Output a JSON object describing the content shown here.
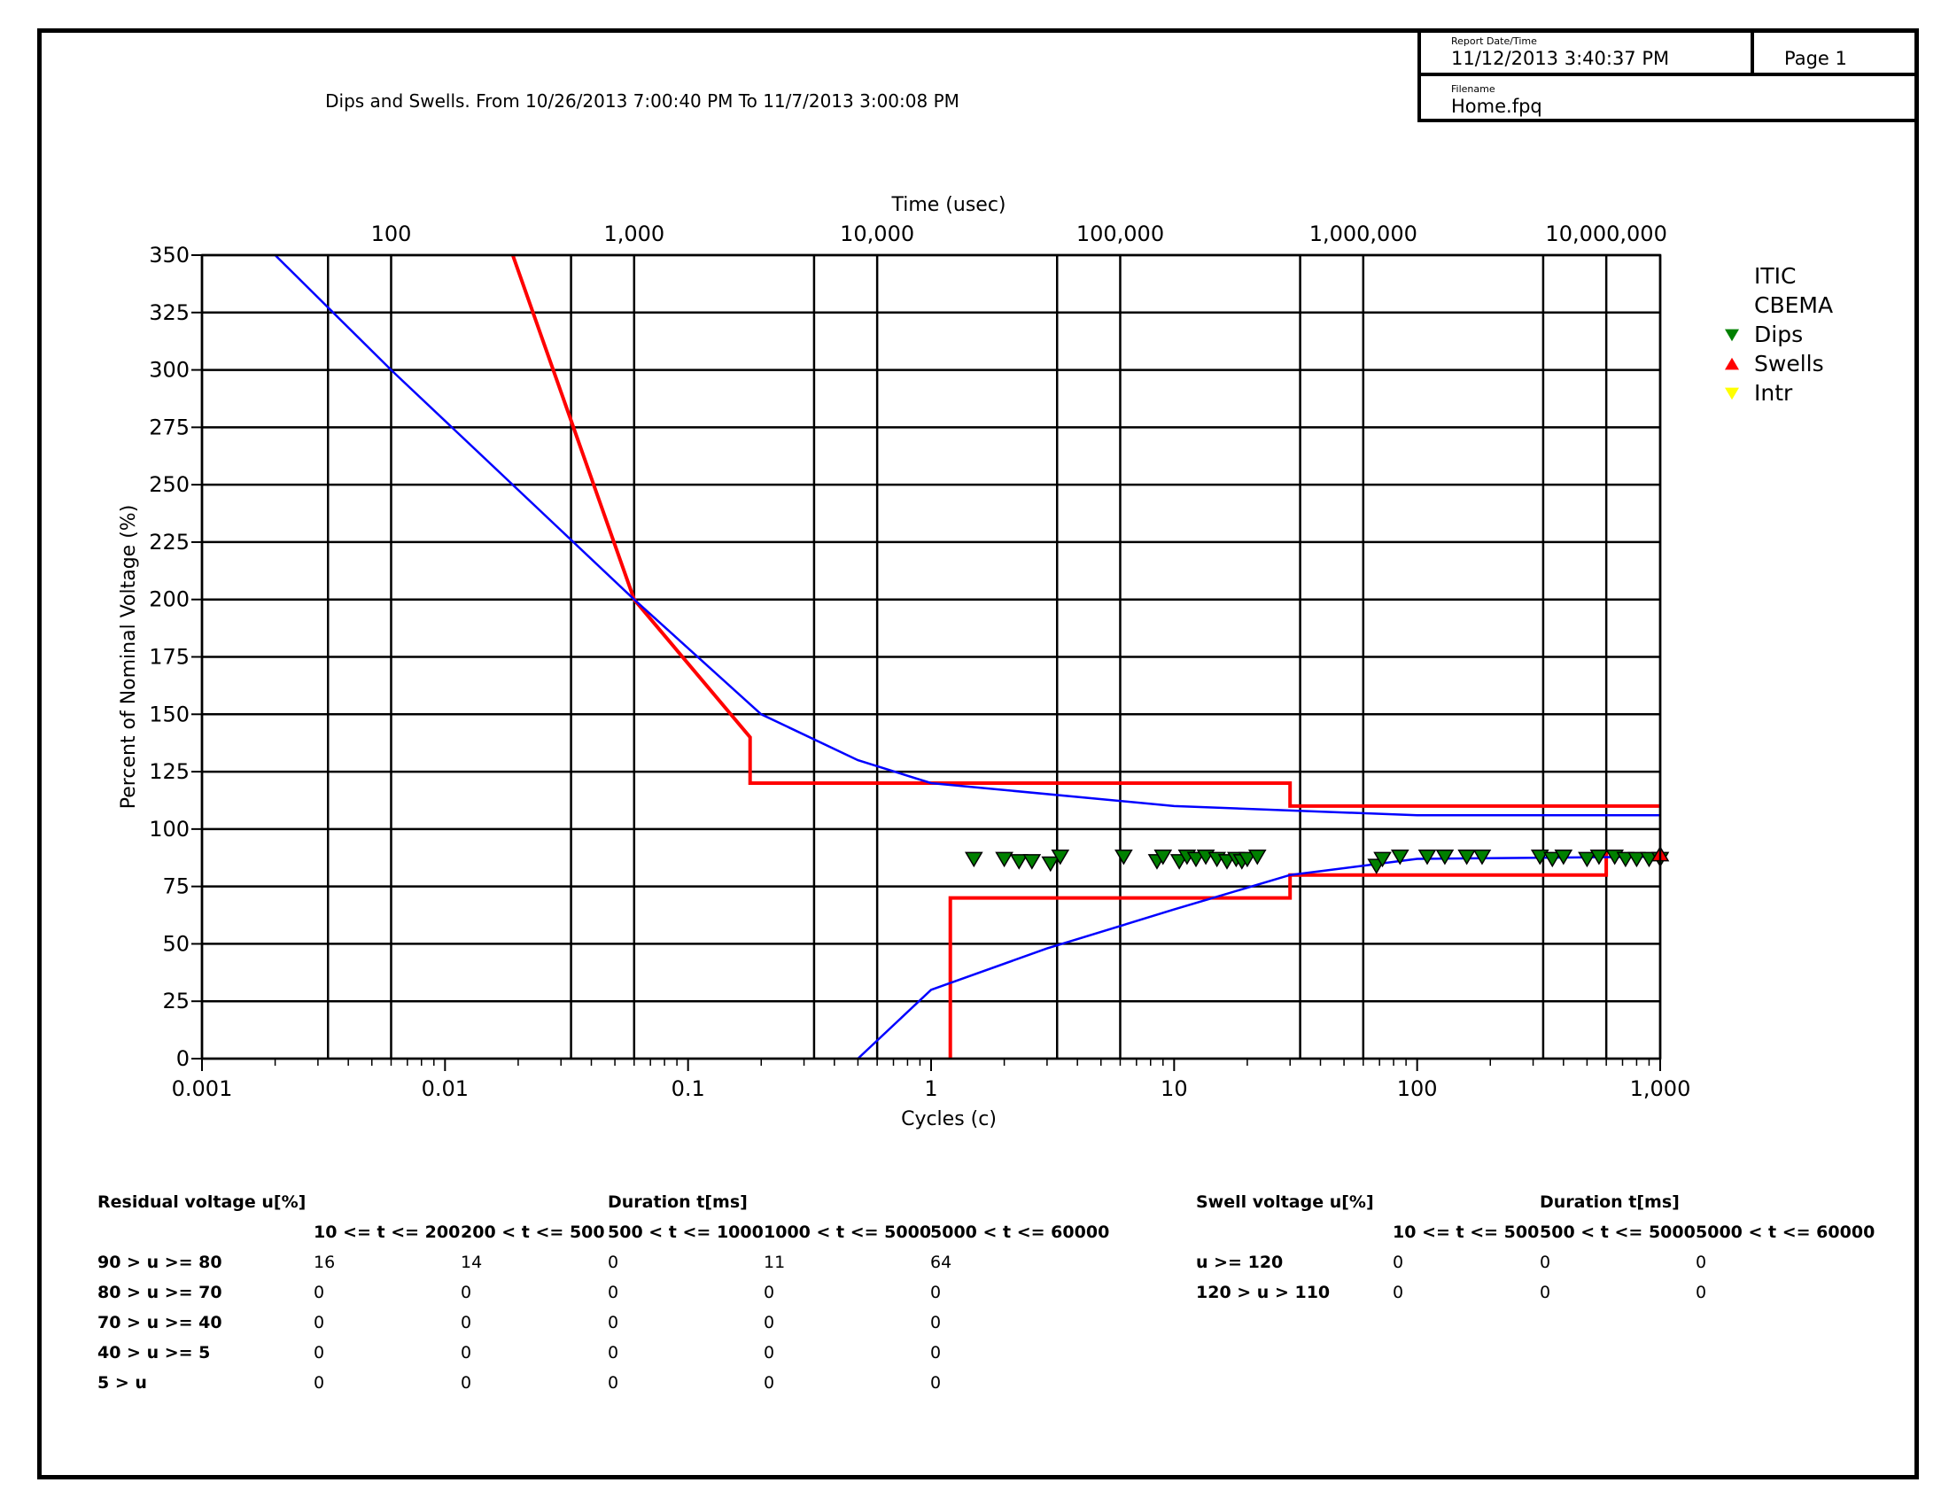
{
  "header": {
    "report_date_caption": "Report Date/Time",
    "report_date": "11/12/2013 3:40:37 PM",
    "page_label": "Page 1",
    "filename_caption": "Filename",
    "filename": "Home.fpq"
  },
  "report_title": "Dips and Swells. From 10/26/2013 7:00:40 PM To 11/7/2013 3:00:08 PM",
  "chart_data": {
    "type": "scatter",
    "title": "",
    "xlabel": "Cycles (c)",
    "x2label": "Time (usec)",
    "ylabel": "Percent of Nominal Voltage (%)",
    "xscale": "log",
    "xlim": [
      0.001,
      1000
    ],
    "ylim": [
      0,
      350
    ],
    "x_ticks": [
      {
        "v": 0.001,
        "label": "0.001"
      },
      {
        "v": 0.01,
        "label": "0.01"
      },
      {
        "v": 0.1,
        "label": "0.1"
      },
      {
        "v": 1,
        "label": "1"
      },
      {
        "v": 10,
        "label": "10"
      },
      {
        "v": 100,
        "label": "100"
      },
      {
        "v": 1000,
        "label": "1,000"
      }
    ],
    "x_gridlines": [
      0.001,
      0.0033,
      0.006,
      0.033,
      0.06,
      0.33,
      0.6,
      3.3,
      6,
      33,
      60,
      330,
      600,
      1000
    ],
    "x2_ticks": [
      {
        "v": 0.006,
        "label": "100"
      },
      {
        "v": 0.06,
        "label": "1,000"
      },
      {
        "v": 0.6,
        "label": "10,000"
      },
      {
        "v": 6,
        "label": "100,000"
      },
      {
        "v": 60,
        "label": "1,000,000"
      },
      {
        "v": 600,
        "label": "10,000,000"
      }
    ],
    "y_ticks": [
      0,
      25,
      50,
      75,
      100,
      125,
      150,
      175,
      200,
      225,
      250,
      275,
      300,
      325,
      350
    ],
    "grid": true,
    "legend_position": "right",
    "legend": [
      {
        "name": "ITIC",
        "marker": "none",
        "color": "#ff0000"
      },
      {
        "name": "CBEMA",
        "marker": "none",
        "color": "#0000ff"
      },
      {
        "name": "Dips",
        "marker": "triangle-down",
        "color": "#008000"
      },
      {
        "name": "Swells",
        "marker": "triangle-up",
        "color": "#ff0000"
      },
      {
        "name": "Intr",
        "marker": "triangle-down",
        "color": "#ffff00"
      }
    ],
    "curves": [
      {
        "name": "ITIC",
        "color": "#ff0000",
        "points": [
          [
            0.019,
            350
          ],
          [
            0.06,
            200
          ],
          [
            0.18,
            140
          ],
          [
            0.18,
            120
          ],
          [
            30,
            120
          ],
          [
            30,
            110
          ],
          [
            1000,
            110
          ]
        ]
      },
      {
        "name": "ITIC",
        "color": "#ff0000",
        "points": [
          [
            1.2,
            0
          ],
          [
            1.2,
            70
          ],
          [
            30,
            70
          ],
          [
            30,
            80
          ],
          [
            600,
            80
          ],
          [
            600,
            90
          ]
        ]
      },
      {
        "name": "CBEMA",
        "color": "#0000ff",
        "points": [
          [
            0.002,
            350
          ],
          [
            0.006,
            300
          ],
          [
            0.06,
            200
          ],
          [
            0.2,
            150
          ],
          [
            0.5,
            130
          ],
          [
            1,
            120
          ],
          [
            10,
            110
          ],
          [
            100,
            106
          ],
          [
            1000,
            106
          ]
        ]
      },
      {
        "name": "CBEMA",
        "color": "#0000ff",
        "points": [
          [
            0.5,
            0
          ],
          [
            1,
            30
          ],
          [
            3,
            48
          ],
          [
            10,
            65
          ],
          [
            30,
            80
          ],
          [
            100,
            87
          ],
          [
            1000,
            88
          ]
        ]
      }
    ],
    "series": [
      {
        "name": "Dips",
        "color": "#008000",
        "marker": "triangle-down",
        "points": [
          [
            1.5,
            87
          ],
          [
            2,
            87
          ],
          [
            2.3,
            86
          ],
          [
            2.6,
            86
          ],
          [
            3.1,
            85
          ],
          [
            3.4,
            88
          ],
          [
            6.2,
            88
          ],
          [
            8.5,
            86
          ],
          [
            9,
            88
          ],
          [
            10.5,
            86
          ],
          [
            11.3,
            88
          ],
          [
            12.3,
            87
          ],
          [
            13.5,
            88
          ],
          [
            15,
            87
          ],
          [
            16.5,
            86
          ],
          [
            18,
            87
          ],
          [
            19,
            86
          ],
          [
            20,
            87
          ],
          [
            22,
            88
          ],
          [
            68,
            84
          ],
          [
            72,
            87
          ],
          [
            85,
            88
          ],
          [
            110,
            88
          ],
          [
            130,
            88
          ],
          [
            160,
            88
          ],
          [
            185,
            88
          ],
          [
            320,
            88
          ],
          [
            360,
            87
          ],
          [
            400,
            88
          ],
          [
            500,
            87
          ],
          [
            560,
            88
          ],
          [
            650,
            88
          ],
          [
            720,
            87
          ],
          [
            800,
            87
          ],
          [
            900,
            87
          ],
          [
            1000,
            87
          ]
        ]
      },
      {
        "name": "Swells",
        "color": "#ff0000",
        "marker": "triangle-up",
        "points": [
          [
            1000,
            89
          ]
        ]
      },
      {
        "name": "Intr",
        "color": "#ffff00",
        "marker": "triangle-down",
        "points": []
      }
    ]
  },
  "dips_table": {
    "title": "Residual voltage u[%]",
    "duration_title": "Duration t[ms]",
    "columns": [
      "10 <= t <= 200",
      "200 < t <= 500",
      "500 < t <= 1000",
      "1000 < t <= 5000",
      "5000 < t <= 60000"
    ],
    "rows": [
      {
        "label": "90 > u >= 80",
        "values": [
          "16",
          "14",
          "0",
          "11",
          "64"
        ]
      },
      {
        "label": "80 > u >= 70",
        "values": [
          "0",
          "0",
          "0",
          "0",
          "0"
        ]
      },
      {
        "label": "70 > u >= 40",
        "values": [
          "0",
          "0",
          "0",
          "0",
          "0"
        ]
      },
      {
        "label": "40 > u >= 5",
        "values": [
          "0",
          "0",
          "0",
          "0",
          "0"
        ]
      },
      {
        "label": "5 > u",
        "values": [
          "0",
          "0",
          "0",
          "0",
          "0"
        ]
      }
    ]
  },
  "swells_table": {
    "title": "Swell voltage u[%]",
    "duration_title": "Duration t[ms]",
    "columns": [
      "10 <= t <= 500",
      "500 < t <= 5000",
      "5000 < t <= 60000"
    ],
    "rows": [
      {
        "label": "u >= 120",
        "values": [
          "0",
          "0",
          "0"
        ]
      },
      {
        "label": "120 > u > 110",
        "values": [
          "0",
          "0",
          "0"
        ]
      }
    ]
  }
}
